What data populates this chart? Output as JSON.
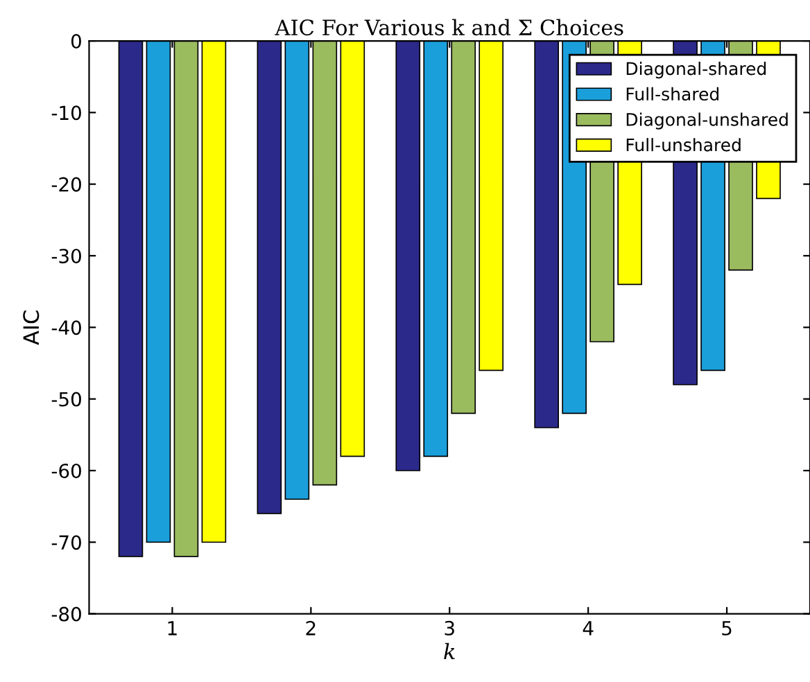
{
  "chart_data": {
    "type": "bar",
    "title": "AIC For Various k and Σ Choices",
    "xlabel": "k",
    "ylabel": "AIC",
    "categories": [
      "1",
      "2",
      "3",
      "4",
      "5"
    ],
    "series": [
      {
        "name": "Diagonal-shared",
        "color": "#2b2a8a",
        "values": [
          -72,
          -66,
          -60,
          -54,
          -48
        ]
      },
      {
        "name": "Full-shared",
        "color": "#1b9fdb",
        "values": [
          -70,
          -64,
          -58,
          -52,
          -46
        ]
      },
      {
        "name": "Diagonal-unshared",
        "color": "#9bbb5f",
        "values": [
          -72,
          -62,
          -52,
          -42,
          -32
        ]
      },
      {
        "name": "Full-unshared",
        "color": "#ffff00",
        "values": [
          -70,
          -58,
          -46,
          -34,
          -22
        ]
      }
    ],
    "ylim": [
      -80,
      0
    ],
    "yticks": [
      -80,
      -70,
      -60,
      -50,
      -40,
      -30,
      -20,
      -10,
      0
    ],
    "grid": false,
    "legend": "top right"
  }
}
